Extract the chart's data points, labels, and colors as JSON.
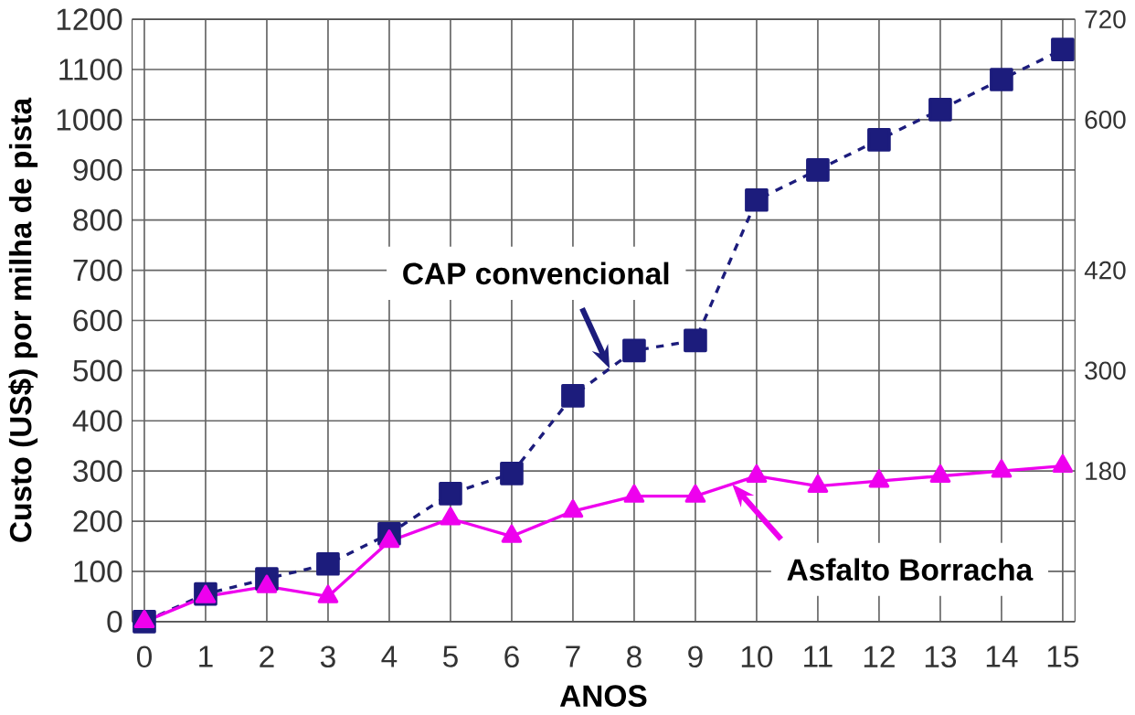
{
  "chart_data": {
    "type": "line",
    "xlabel": "ANOS",
    "ylabel": "Custo (US$) por milha de pista",
    "x": [
      0,
      1,
      2,
      3,
      4,
      5,
      6,
      7,
      8,
      9,
      10,
      11,
      12,
      13,
      14,
      15
    ],
    "series": [
      {
        "name": "CAP convencional",
        "color": "#1c1c7c",
        "marker": "square",
        "line_style": "dashed",
        "values": [
          0,
          55,
          85,
          115,
          175,
          255,
          295,
          450,
          540,
          560,
          840,
          900,
          960,
          1020,
          1080,
          1140
        ]
      },
      {
        "name": "Asfalto Borracha",
        "color": "#ee00ee",
        "marker": "triangle",
        "line_style": "solid",
        "values": [
          0,
          50,
          70,
          50,
          160,
          205,
          170,
          220,
          250,
          250,
          290,
          270,
          280,
          290,
          300,
          310
        ]
      }
    ],
    "xlim": [
      -0.2,
      15.2
    ],
    "xticks": [
      0,
      1,
      2,
      3,
      4,
      5,
      6,
      7,
      8,
      9,
      10,
      11,
      12,
      13,
      14,
      15
    ],
    "ylim": [
      0,
      1200
    ],
    "yticks": [
      0,
      100,
      200,
      300,
      400,
      500,
      600,
      700,
      800,
      900,
      1000,
      1100,
      1200
    ],
    "y2lim": [
      0,
      720
    ],
    "y2ticks": [
      180,
      300,
      420,
      600,
      720
    ],
    "grid": true
  }
}
